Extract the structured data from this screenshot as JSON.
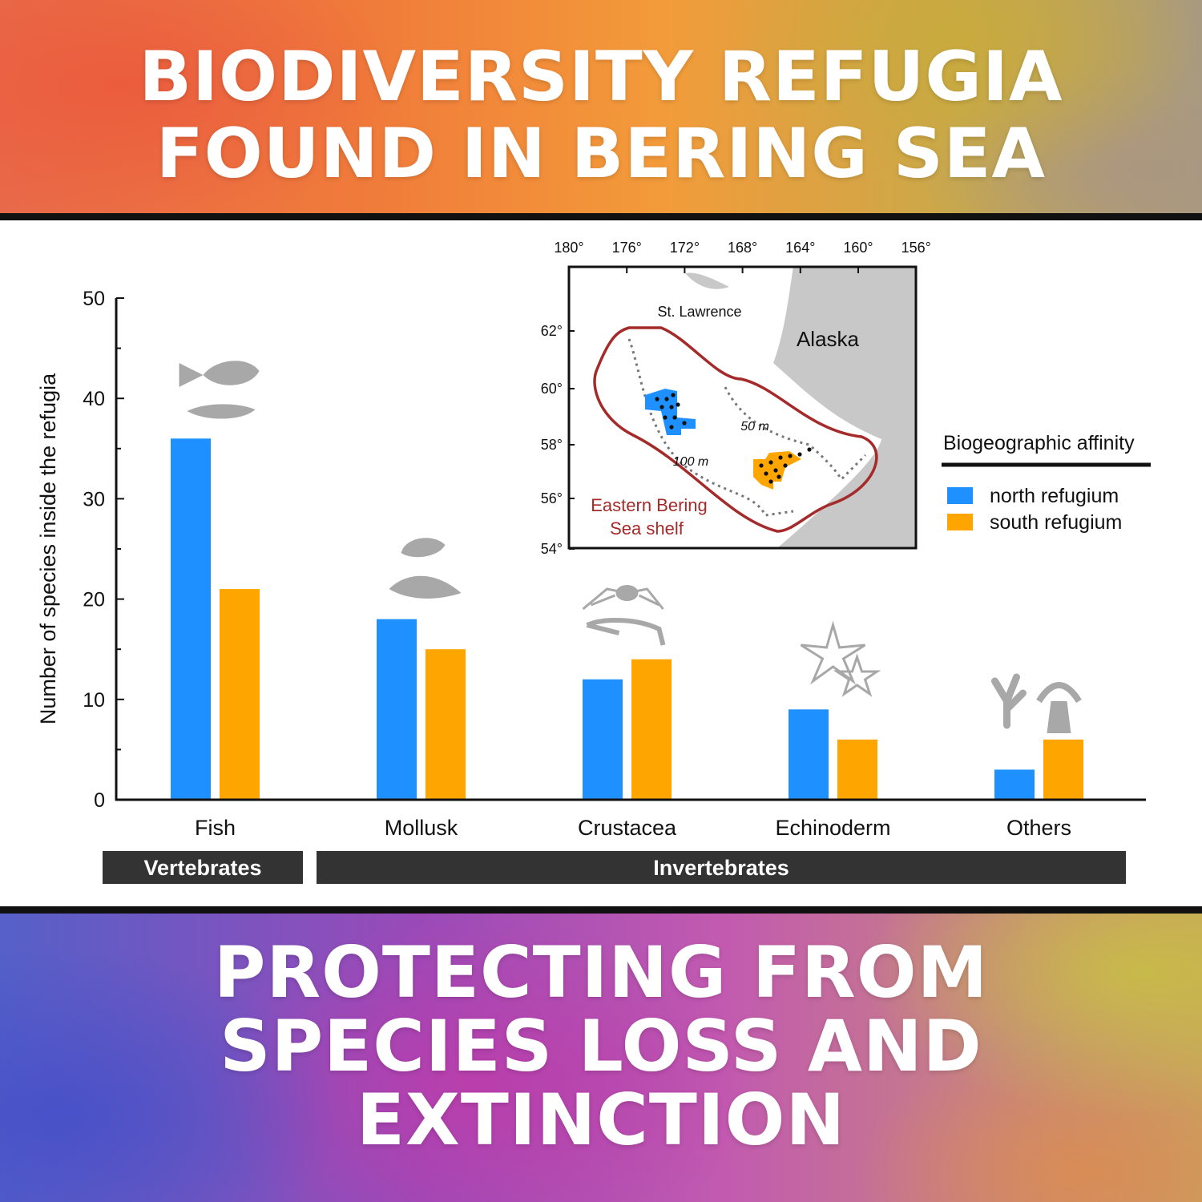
{
  "headline_top": [
    "BIODIVERSITY REFUGIA",
    "FOUND IN BERING SEA"
  ],
  "headline_bottom": [
    "PROTECTING FROM",
    "SPECIES LOSS AND",
    "EXTINCTION"
  ],
  "colors": {
    "north": "#1e90ff",
    "south": "#ffa500",
    "shelf_outline": "#a52a2a",
    "land": "#c8c8c8",
    "group_bar": "#333333"
  },
  "chart_data": {
    "type": "bar",
    "title": "",
    "xlabel": "",
    "ylabel": "Number of species inside the refugia",
    "ylim": [
      0,
      50
    ],
    "yticks": [
      0,
      10,
      20,
      30,
      40,
      50
    ],
    "categories": [
      "Fish",
      "Mollusk",
      "Crustacea",
      "Echinoderm",
      "Others"
    ],
    "series": [
      {
        "name": "north refugium",
        "values": [
          36,
          18,
          12,
          9,
          3
        ]
      },
      {
        "name": "south refugium",
        "values": [
          21,
          15,
          14,
          6,
          6
        ]
      }
    ],
    "groups": [
      {
        "label": "Vertebrates",
        "categories": [
          "Fish"
        ]
      },
      {
        "label": "Invertebrates",
        "categories": [
          "Mollusk",
          "Crustacea",
          "Echinoderm",
          "Others"
        ]
      }
    ],
    "legend": {
      "title": "Biogeographic affinity",
      "position": "right"
    },
    "icons": [
      "fish-icon",
      "shell-icon",
      "crab-icon",
      "starfish-icon",
      "coral-icon"
    ],
    "inset_map": {
      "lon_ticks": [
        "180°",
        "176°",
        "172°",
        "168°",
        "164°",
        "160°",
        "156°"
      ],
      "lat_ticks": [
        "62°",
        "60°",
        "58°",
        "56°",
        "54°"
      ],
      "labels": {
        "island": "St. Lawrence",
        "land": "Alaska",
        "shelf": [
          "Eastern Bering",
          "Sea shelf"
        ],
        "isobath_shallow": "50 m",
        "isobath_deep": "100 m"
      }
    }
  }
}
